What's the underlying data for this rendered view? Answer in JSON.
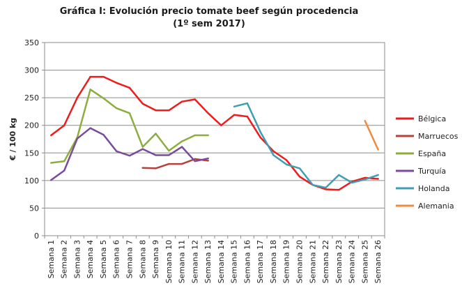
{
  "chart_data": {
    "type": "line",
    "title": "Gráfica I: Evolución precio tomate beef según procedencia",
    "subtitle": "(1º sem 2017)",
    "ylabel": "€ / 100 kg",
    "xlabel": "",
    "ylim": [
      0,
      350
    ],
    "yticks": [
      0,
      50,
      100,
      150,
      200,
      250,
      300,
      350
    ],
    "grid": true,
    "legend_position": "right",
    "categories": [
      "Semana 1",
      "Semana 2",
      "Semana 3",
      "Semana 4",
      "Semana 5",
      "Semana 6",
      "Semana 7",
      "Semana 8",
      "Semana 9",
      "Semana 10",
      "Semana 11",
      "Semana 12",
      "Semana 13",
      "Semana 14",
      "Semana 15",
      "Semana 16",
      "Semana 17",
      "Semana 18",
      "Semana 19",
      "Semana 20",
      "Semana 21",
      "Semana 22",
      "Semana 23",
      "Semana 24",
      "Semana 25",
      "Semana 26"
    ],
    "series": [
      {
        "name": "Bélgica",
        "color": "#ee1c1c",
        "values": [
          182,
          200,
          250,
          288,
          288,
          277,
          268,
          239,
          227,
          227,
          243,
          247,
          222,
          200,
          219,
          216,
          178,
          153,
          137,
          107,
          92,
          84,
          83,
          98,
          105,
          103
        ]
      },
      {
        "name": "Marruecos",
        "color": "#b5413a",
        "values": [
          null,
          null,
          null,
          null,
          null,
          null,
          null,
          123,
          122,
          130,
          130,
          139,
          136,
          null,
          null,
          null,
          null,
          null,
          null,
          null,
          null,
          null,
          null,
          null,
          null,
          null
        ]
      },
      {
        "name": "España",
        "color": "#8dae3c",
        "values": [
          132,
          135,
          178,
          265,
          249,
          231,
          222,
          161,
          185,
          154,
          171,
          182,
          182,
          null,
          null,
          null,
          null,
          null,
          null,
          null,
          null,
          null,
          null,
          null,
          null,
          null
        ]
      },
      {
        "name": "Turquía",
        "color": "#7a4a9b",
        "values": [
          101,
          118,
          176,
          195,
          183,
          153,
          145,
          157,
          146,
          146,
          161,
          135,
          140,
          null,
          null,
          null,
          null,
          null,
          null,
          null,
          null,
          null,
          null,
          null,
          null,
          null
        ]
      },
      {
        "name": "Holanda",
        "color": "#3c9fb4",
        "values": [
          null,
          null,
          null,
          null,
          null,
          null,
          null,
          null,
          null,
          null,
          null,
          null,
          null,
          null,
          234,
          240,
          188,
          146,
          129,
          122,
          92,
          87,
          110,
          96,
          102,
          110
        ]
      },
      {
        "name": "Alemania",
        "color": "#f08a3c",
        "values": [
          null,
          null,
          null,
          null,
          null,
          null,
          null,
          null,
          null,
          null,
          null,
          null,
          null,
          null,
          null,
          null,
          null,
          null,
          null,
          null,
          null,
          null,
          null,
          null,
          208,
          156
        ]
      }
    ]
  }
}
